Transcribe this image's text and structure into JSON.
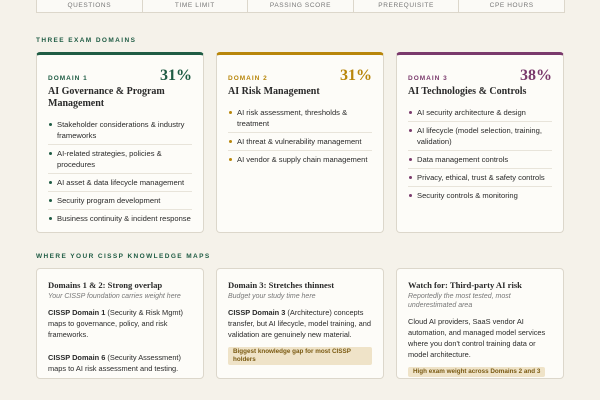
{
  "stats": [
    "QUESTIONS",
    "TIME LIMIT",
    "PASSING SCORE",
    "PREREQUISITE",
    "CPE HOURS"
  ],
  "domains_section": {
    "title": "THREE EXAM DOMAINS",
    "domains": [
      {
        "label": "DOMAIN 1",
        "percent": "31%",
        "color": "#1f5c44",
        "title": "AI Governance & Program Management",
        "bullets": [
          "Stakeholder considerations & industry frameworks",
          "AI-related strategies, policies & procedures",
          "AI asset & data lifecycle management",
          "Security program development",
          "Business continuity & incident response"
        ]
      },
      {
        "label": "DOMAIN 2",
        "percent": "31%",
        "color": "#b8860b",
        "title": "AI Risk Management",
        "bullets": [
          "AI risk assessment, thresholds & treatment",
          "AI threat & vulnerability management",
          "AI vendor & supply chain management"
        ]
      },
      {
        "label": "DOMAIN 3",
        "percent": "38%",
        "color": "#7a3a6c",
        "title": "AI Technologies & Controls",
        "bullets": [
          "AI security architecture & design",
          "AI lifecycle (model selection, training, validation)",
          "Data management controls",
          "Privacy, ethical, trust & safety controls",
          "Security controls & monitoring"
        ]
      }
    ]
  },
  "maps_section": {
    "title": "WHERE YOUR CISSP KNOWLEDGE MAPS",
    "cards": [
      {
        "title": "Domains 1 & 2: Strong overlap",
        "subtitle": "Your CISSP foundation carries weight here",
        "paragraphs": [
          {
            "bold": "CISSP Domain 1",
            "text": " (Security & Risk Mgmt) maps to governance, policy, and risk frameworks."
          },
          {
            "bold": "CISSP Domain 6",
            "text": " (Security Assessment) maps to AI risk assessment and testing."
          }
        ]
      },
      {
        "title": "Domain 3: Stretches thinnest",
        "subtitle": "Budget your study time here",
        "paragraphs": [
          {
            "bold": "CISSP Domain 3",
            "text": " (Architecture) concepts transfer, but AI lifecycle, model training, and validation are genuinely new material."
          }
        ],
        "tag": "Biggest knowledge gap for most CISSP holders"
      },
      {
        "title": "Watch for: Third-party AI risk",
        "subtitle": "Reportedly the most tested, most underestimated area",
        "paragraphs": [
          {
            "text": "Cloud AI providers, SaaS vendor AI automation, and managed model services where you don't control training data or model architecture."
          }
        ],
        "tag": "High exam weight across Domains 2 and 3"
      }
    ]
  }
}
